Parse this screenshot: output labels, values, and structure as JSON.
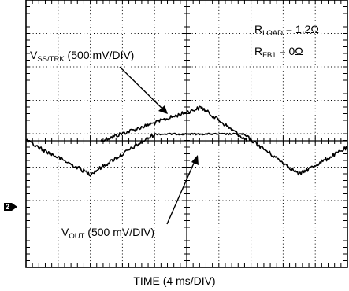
{
  "chart_data": {
    "type": "line",
    "xlabel": "TIME (4 ms/DIV)",
    "x_per_div_ms": 4,
    "y_per_div_mV": 500,
    "x_range_ms": [
      0,
      40
    ],
    "grid": true,
    "ground_marker": "2",
    "annotations": {
      "rload": {
        "prefix": "R",
        "sub": "LOAD",
        "suffix": " = 1.2Ω"
      },
      "rfb1": {
        "prefix": "R",
        "sub": "FB1",
        "suffix": " = 0Ω"
      }
    },
    "series": [
      {
        "label_prefix": "V",
        "label_sub": "SS/TRK",
        "label_suffix": " (500 mV/DIV)",
        "color": "#000000",
        "points_ms_div": [
          [
            9.3,
            0.0
          ],
          [
            21.8,
            1.0
          ],
          [
            27.5,
            0.0
          ]
        ]
      },
      {
        "label_prefix": "V",
        "label_sub": "OUT",
        "label_suffix": " (500 mV/DIV)",
        "color": "#000000",
        "points_ms_div": [
          [
            0,
            0.0
          ],
          [
            8.0,
            -1.0
          ],
          [
            16.0,
            0.2
          ],
          [
            27.0,
            0.2
          ],
          [
            34.0,
            -1.0
          ],
          [
            40.0,
            -0.2
          ]
        ]
      }
    ]
  }
}
